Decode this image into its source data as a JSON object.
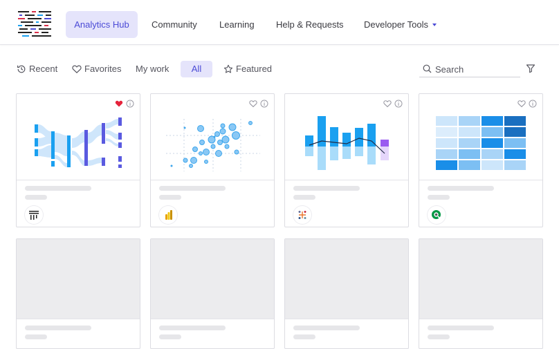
{
  "nav": {
    "logo_icon": "patterned-stripes-logo",
    "tabs": [
      {
        "label": "Analytics Hub",
        "active": true
      },
      {
        "label": "Community",
        "active": false
      },
      {
        "label": "Learning",
        "active": false
      },
      {
        "label": "Help & Requests",
        "active": false
      },
      {
        "label": "Developer Tools",
        "active": false,
        "has_dropdown": true
      }
    ]
  },
  "filters": {
    "items": [
      {
        "label": "Recent",
        "icon": "history-icon"
      },
      {
        "label": "Favorites",
        "icon": "heart-outline-icon"
      },
      {
        "label": "My work",
        "icon": ""
      },
      {
        "label": "All",
        "icon": "",
        "active": true
      },
      {
        "label": "Featured",
        "icon": "star-outline-icon"
      }
    ],
    "search_placeholder": "Search",
    "filter_icon": "funnel-icon"
  },
  "colors": {
    "accent": "#4b4ad6",
    "active_bg": "#e5e4fb",
    "favorite_red": "#e5233b",
    "chart_blue": "#1aa0f0"
  },
  "cards": [
    {
      "chart_icon": "sankey-chart",
      "favorited": true,
      "tool_icon": "bar-tool-icon"
    },
    {
      "chart_icon": "bubble-scatter-chart",
      "favorited": false,
      "tool_icon": "power-bi-icon"
    },
    {
      "chart_icon": "bar-line-combo-chart",
      "favorited": false,
      "tool_icon": "tableau-icon"
    },
    {
      "chart_icon": "heatmap-chart",
      "favorited": false,
      "tool_icon": "qlik-icon"
    }
  ],
  "placeholder_cards": 4
}
